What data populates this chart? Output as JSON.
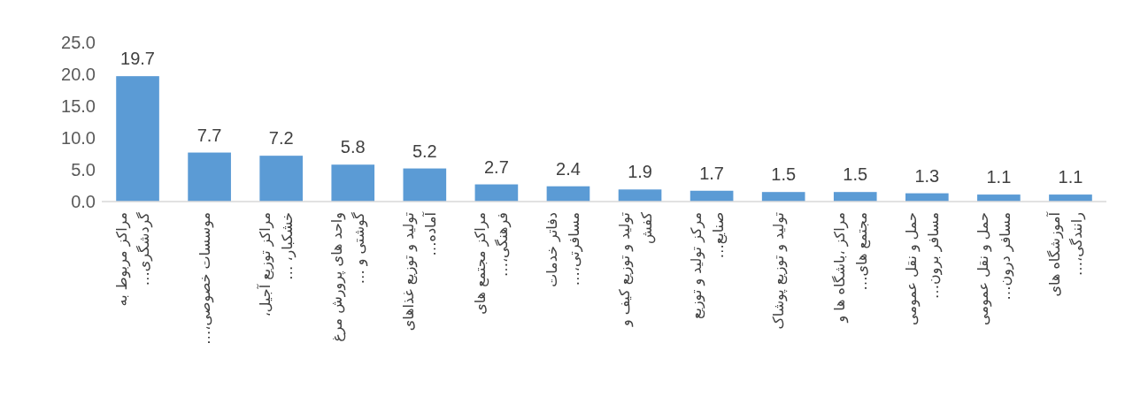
{
  "chart_data": {
    "type": "bar",
    "categories": [
      "مراکز مربوط به گردشگری…",
      "موسسات خصوصی،…",
      "مراکز توزیع آجیل، خشکبار، …",
      "واحد های پرورش مرغ گوشتی و …",
      "تولید و توزیع غذاهای آماده…",
      "مراکز مجتمع های فرهنگی،…",
      "دفاتر خدمات مسافرتی،…",
      "تولید و توزیع کیف و کفش",
      "مرکز تولید و توزیع صنایع…",
      "تولید و توزیع پوشاک",
      "مراکز ،باشگاه ها و مجتمع های…",
      "حمل و نقل عمومی مسافر برون…",
      "حمل و نقل عمومی مسافر درون…",
      "آموزشگاه های رانندگی،…"
    ],
    "values": [
      19.7,
      7.7,
      7.2,
      5.8,
      5.2,
      2.7,
      2.4,
      1.9,
      1.7,
      1.5,
      1.5,
      1.3,
      1.1,
      1.1
    ],
    "color": "#5b9bd5",
    "ylim": [
      0,
      25
    ],
    "yticks": [
      {
        "value": 0,
        "label": "0.0"
      },
      {
        "value": 5,
        "label": "5.0"
      },
      {
        "value": 10,
        "label": "10.0"
      },
      {
        "value": 15,
        "label": "15.0"
      },
      {
        "value": 20,
        "label": "20.0"
      },
      {
        "value": 25,
        "label": "25.0"
      }
    ],
    "data_labels": true
  }
}
